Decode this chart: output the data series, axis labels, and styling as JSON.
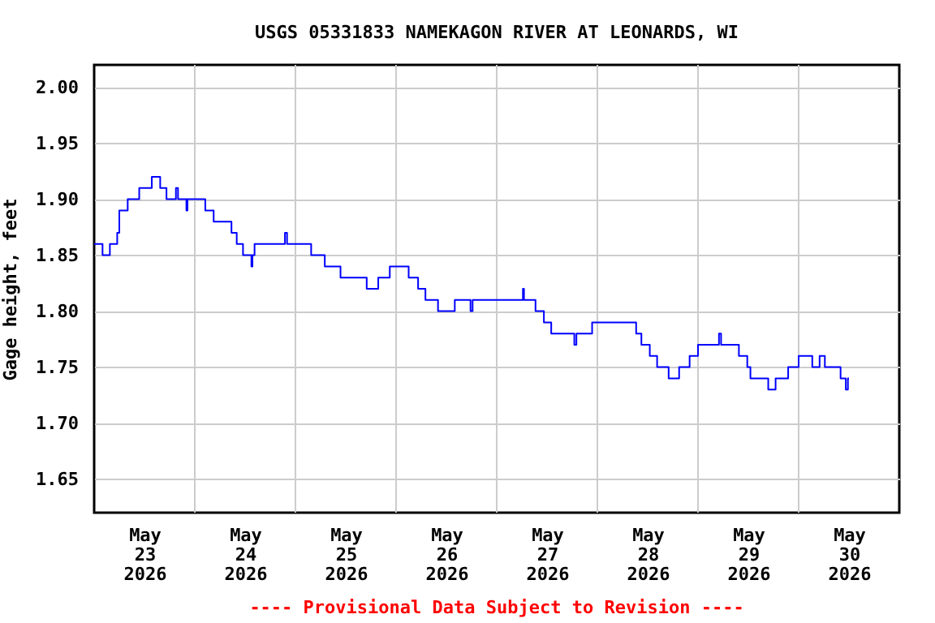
{
  "chart_data": {
    "type": "step",
    "title": "USGS 05331833 NAMEKAGON RIVER AT LEONARDS, WI",
    "ylabel": "Gage height, feet",
    "annotations": [
      "---- Provisional Data Subject to Revision ----"
    ],
    "x": [
      "2026-05-23T00:00",
      "2026-05-23T02:00",
      "2026-05-23T03:45",
      "2026-05-23T05:30",
      "2026-05-23T06:00",
      "2026-05-23T08:00",
      "2026-05-23T10:45",
      "2026-05-23T13:45",
      "2026-05-23T15:45",
      "2026-05-23T17:15",
      "2026-05-23T19:30",
      "2026-05-23T20:00",
      "2026-05-23T22:00",
      "2026-05-23T22:15",
      "2026-05-24T02:30",
      "2026-05-24T04:30",
      "2026-05-24T08:45",
      "2026-05-24T10:00",
      "2026-05-24T11:30",
      "2026-05-24T13:30",
      "2026-05-24T13:45",
      "2026-05-24T14:15",
      "2026-05-24T21:30",
      "2026-05-24T22:00",
      "2026-05-25T03:45",
      "2026-05-25T07:00",
      "2026-05-25T10:45",
      "2026-05-25T17:00",
      "2026-05-25T19:45",
      "2026-05-25T22:30",
      "2026-05-26T03:00",
      "2026-05-26T05:15",
      "2026-05-26T07:00",
      "2026-05-26T10:00",
      "2026-05-26T14:00",
      "2026-05-26T17:45",
      "2026-05-26T18:15",
      "2026-05-27T06:15",
      "2026-05-27T06:30",
      "2026-05-27T09:15",
      "2026-05-27T11:15",
      "2026-05-27T13:00",
      "2026-05-27T18:30",
      "2026-05-27T19:00",
      "2026-05-27T22:45",
      "2026-05-28T09:15",
      "2026-05-28T10:30",
      "2026-05-28T12:30",
      "2026-05-28T14:15",
      "2026-05-28T17:00",
      "2026-05-28T19:30",
      "2026-05-28T22:00",
      "2026-05-29T00:00",
      "2026-05-29T05:00",
      "2026-05-29T05:30",
      "2026-05-29T09:45",
      "2026-05-29T11:45",
      "2026-05-29T12:30",
      "2026-05-29T16:45",
      "2026-05-29T18:30",
      "2026-05-29T21:30",
      "2026-05-30T00:00",
      "2026-05-30T03:15",
      "2026-05-30T05:00",
      "2026-05-30T06:15",
      "2026-05-30T10:00",
      "2026-05-30T11:15",
      "2026-05-30T11:45",
      "2026-05-30T12:00"
    ],
    "series": [
      {
        "color": "#0000ff",
        "values": [
          1.86,
          1.85,
          1.86,
          1.87,
          1.89,
          1.9,
          1.91,
          1.92,
          1.91,
          1.9,
          1.91,
          1.9,
          1.89,
          1.9,
          1.89,
          1.88,
          1.87,
          1.86,
          1.85,
          1.84,
          1.85,
          1.86,
          1.87,
          1.86,
          1.85,
          1.84,
          1.83,
          1.82,
          1.83,
          1.84,
          1.83,
          1.82,
          1.81,
          1.8,
          1.81,
          1.8,
          1.81,
          1.82,
          1.81,
          1.8,
          1.79,
          1.78,
          1.77,
          1.78,
          1.79,
          1.78,
          1.77,
          1.76,
          1.75,
          1.74,
          1.75,
          1.76,
          1.77,
          1.78,
          1.77,
          1.76,
          1.75,
          1.74,
          1.73,
          1.74,
          1.75,
          1.76,
          1.75,
          1.76,
          1.75,
          1.74,
          1.73,
          1.74,
          1.74
        ]
      }
    ],
    "xlim": [
      "2026-05-23T00:00",
      "2026-05-31T00:00"
    ],
    "xticks": [
      {
        "value": "2026-05-23T12:00",
        "label": "May\n23\n2026"
      },
      {
        "value": "2026-05-24T12:00",
        "label": "May\n24\n2026"
      },
      {
        "value": "2026-05-25T12:00",
        "label": "May\n25\n2026"
      },
      {
        "value": "2026-05-26T12:00",
        "label": "May\n26\n2026"
      },
      {
        "value": "2026-05-27T12:00",
        "label": "May\n27\n2026"
      },
      {
        "value": "2026-05-28T12:00",
        "label": "May\n28\n2026"
      },
      {
        "value": "2026-05-29T12:00",
        "label": "May\n29\n2026"
      },
      {
        "value": "2026-05-30T12:00",
        "label": "May\n30\n2026"
      },
      {
        "value": "2026-05-24T00:00",
        "label": null
      },
      {
        "value": "2026-05-25T00:00",
        "label": null
      },
      {
        "value": "2026-05-26T00:00",
        "label": null
      },
      {
        "value": "2026-05-27T00:00",
        "label": null
      },
      {
        "value": "2026-05-28T00:00",
        "label": null
      },
      {
        "value": "2026-05-29T00:00",
        "label": null
      },
      {
        "value": "2026-05-30T00:00",
        "label": null
      }
    ],
    "ylim": [
      1.62,
      2.02
    ],
    "yticks": [
      {
        "value": 1.65,
        "label": "1.65"
      },
      {
        "value": 1.7,
        "label": "1.70"
      },
      {
        "value": 1.75,
        "label": "1.75"
      },
      {
        "value": 1.8,
        "label": "1.80"
      },
      {
        "value": 1.85,
        "label": "1.85"
      },
      {
        "value": 1.9,
        "label": "1.90"
      },
      {
        "value": 1.95,
        "label": "1.95"
      },
      {
        "value": 2,
        "label": "2.00"
      }
    ],
    "grid": true,
    "line_style": "solid"
  }
}
